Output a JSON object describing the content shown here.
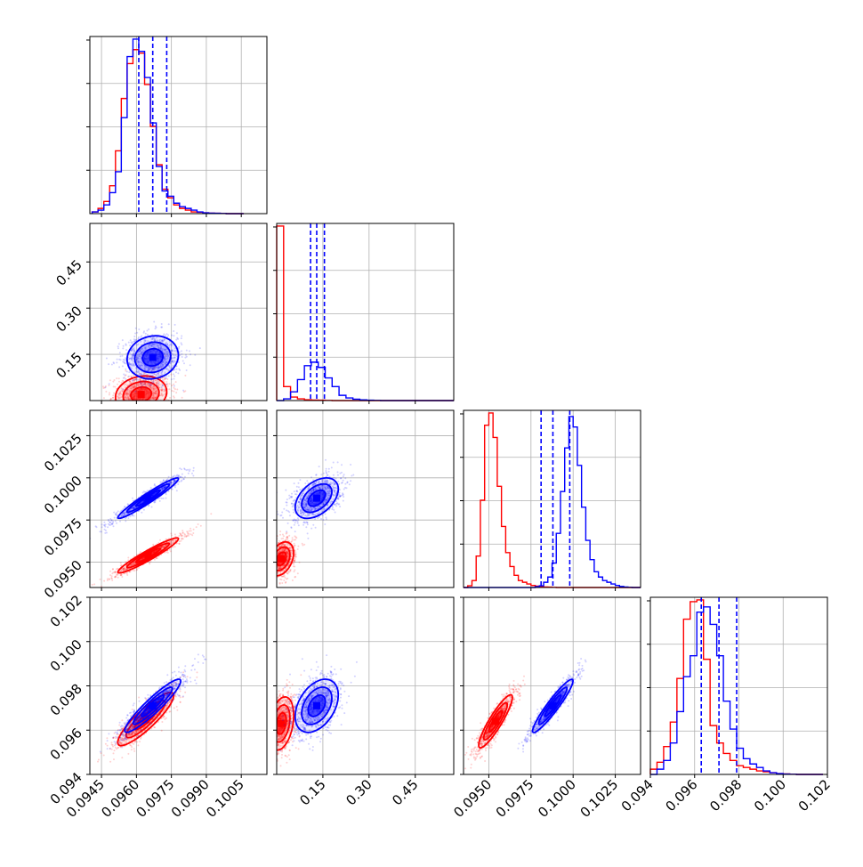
{
  "chart_data": {
    "type": "corner",
    "grid": true,
    "series_colors": {
      "blue": "#0000ff",
      "red": "#ff0000"
    },
    "parameters": [
      {
        "axis_range": [
          0.094,
          0.1016
        ],
        "ticks": [
          "0.0945",
          "0.0960",
          "0.0975",
          "0.0990",
          "0.1005"
        ],
        "tick_values": [
          0.0945,
          0.096,
          0.0975,
          0.099,
          0.1005
        ]
      },
      {
        "axis_range": [
          0.0,
          0.575
        ],
        "ticks": [
          "0.15",
          "0.30",
          "0.45"
        ],
        "tick_values": [
          0.15,
          0.3,
          0.45
        ]
      },
      {
        "axis_range": [
          0.0935,
          0.104
        ],
        "ticks": [
          "0.0950",
          "0.0975",
          "0.1000",
          "0.1025"
        ],
        "tick_values": [
          0.095,
          0.0975,
          0.1,
          0.1025
        ]
      },
      {
        "axis_range": [
          0.094,
          0.102
        ],
        "ticks": [
          "0.094",
          "0.096",
          "0.098",
          "0.100",
          "0.102"
        ],
        "tick_values": [
          0.094,
          0.096,
          0.098,
          0.1,
          0.102
        ]
      }
    ],
    "quantile_lines_blue": [
      [
        0.0961,
        0.0967,
        0.0973
      ],
      [
        0.11,
        0.13,
        0.155
      ],
      [
        0.0981,
        0.0988,
        0.0998
      ],
      [
        0.0963,
        0.0971,
        0.0979
      ]
    ],
    "histograms": [
      {
        "bins": [
          0.0941,
          0.09435,
          0.0946,
          0.09485,
          0.0951,
          0.09535,
          0.0956,
          0.09585,
          0.0961,
          0.09635,
          0.0966,
          0.09685,
          0.0971,
          0.09735,
          0.0976,
          0.09785,
          0.0981,
          0.09835,
          0.0986,
          0.09885,
          0.0991,
          0.09935,
          0.0996,
          0.09985,
          0.1001,
          0.10035,
          0.1006
        ],
        "blue": [
          0.01,
          0.02,
          0.05,
          0.12,
          0.24,
          0.55,
          0.9,
          1.0,
          0.93,
          0.78,
          0.52,
          0.27,
          0.13,
          0.1,
          0.06,
          0.04,
          0.03,
          0.02,
          0.01,
          0.005,
          0.003,
          0.002,
          0.001,
          0,
          0,
          0
        ],
        "red": [
          0.01,
          0.03,
          0.07,
          0.16,
          0.36,
          0.66,
          0.86,
          0.94,
          0.92,
          0.74,
          0.5,
          0.28,
          0.14,
          0.09,
          0.05,
          0.03,
          0.02,
          0.01,
          0.008,
          0.005,
          0.003,
          0.002,
          0.001,
          0,
          0,
          0
        ]
      },
      {
        "bins": [
          0.0,
          0.0225,
          0.045,
          0.0675,
          0.09,
          0.1125,
          0.135,
          0.1575,
          0.18,
          0.2025,
          0.225,
          0.2475,
          0.27,
          0.2925,
          0.315,
          0.3375,
          0.36,
          0.3825,
          0.405,
          0.4275,
          0.45,
          0.4725,
          0.495,
          0.5175,
          0.54,
          0.5625,
          0.575
        ],
        "blue": [
          0,
          0.01,
          0.05,
          0.12,
          0.2,
          0.22,
          0.19,
          0.13,
          0.08,
          0.03,
          0.015,
          0.008,
          0.004,
          0.002,
          0.001,
          0,
          0,
          0,
          0,
          0,
          0,
          0,
          0,
          0,
          0,
          0
        ],
        "red": [
          1.0,
          0.08,
          0.02,
          0.01,
          0.005,
          0.003,
          0.002,
          0.001,
          0,
          0,
          0,
          0,
          0,
          0,
          0,
          0,
          0,
          0,
          0,
          0,
          0,
          0,
          0,
          0,
          0,
          0
        ]
      },
      {
        "bins": [
          0.0935,
          0.09375,
          0.094,
          0.09425,
          0.0945,
          0.09475,
          0.095,
          0.09525,
          0.0955,
          0.09575,
          0.096,
          0.09625,
          0.0965,
          0.09675,
          0.097,
          0.09725,
          0.0975,
          0.09775,
          0.098,
          0.09825,
          0.0985,
          0.09875,
          0.099,
          0.09925,
          0.0995,
          0.09975,
          0.1,
          0.10025,
          0.1005,
          0.10075,
          0.101,
          0.10125,
          0.1015,
          0.10175,
          0.102,
          0.10225,
          0.1025,
          0.10275,
          0.103,
          0.10325,
          0.1035,
          0.10375,
          0.104
        ],
        "blue": [
          0,
          0,
          0,
          0,
          0,
          0,
          0,
          0,
          0,
          0,
          0,
          0,
          0,
          0,
          0,
          0,
          0,
          0.005,
          0.01,
          0.03,
          0.06,
          0.14,
          0.31,
          0.55,
          0.8,
          0.98,
          0.92,
          0.7,
          0.46,
          0.27,
          0.16,
          0.09,
          0.06,
          0.04,
          0.03,
          0.02,
          0.012,
          0.006,
          0.003,
          0.001,
          0,
          0
        ],
        "red": [
          0,
          0.01,
          0.04,
          0.18,
          0.5,
          0.93,
          1.0,
          0.86,
          0.58,
          0.35,
          0.2,
          0.12,
          0.07,
          0.04,
          0.03,
          0.02,
          0.012,
          0.008,
          0.005,
          0.003,
          0.002,
          0.001,
          0,
          0,
          0,
          0,
          0,
          0,
          0,
          0,
          0,
          0,
          0,
          0,
          0,
          0,
          0,
          0,
          0,
          0,
          0,
          0
        ]
      },
      {
        "bins": [
          0.094,
          0.0943,
          0.0946,
          0.0949,
          0.0952,
          0.0955,
          0.0958,
          0.0961,
          0.0964,
          0.0967,
          0.097,
          0.0973,
          0.0976,
          0.0979,
          0.0982,
          0.0985,
          0.0988,
          0.0991,
          0.0994,
          0.0997,
          0.1,
          0.1003,
          0.1006,
          0.1009,
          0.1012,
          0.1015,
          0.1018
        ],
        "blue": [
          0.0,
          0.03,
          0.08,
          0.18,
          0.36,
          0.56,
          0.68,
          0.93,
          0.96,
          0.86,
          0.68,
          0.42,
          0.26,
          0.15,
          0.09,
          0.06,
          0.04,
          0.02,
          0.01,
          0.005,
          0.002,
          0.001,
          0,
          0,
          0,
          0
        ],
        "red": [
          0.03,
          0.07,
          0.16,
          0.3,
          0.55,
          0.89,
          0.99,
          1.0,
          0.66,
          0.28,
          0.18,
          0.12,
          0.08,
          0.05,
          0.04,
          0.03,
          0.02,
          0.015,
          0.01,
          0.005,
          0.003,
          0.001,
          0,
          0,
          0,
          0
        ]
      }
    ],
    "scatter_clouds": [
      {
        "row": 1,
        "col": 0,
        "blue": {
          "mean": [
            0.0967,
            0.14
          ],
          "sd": [
            0.00055,
            0.035
          ],
          "corr": 0.1
        },
        "red": {
          "mean": [
            0.0962,
            0.02
          ],
          "sd": [
            0.00055,
            0.03
          ],
          "corr": 0.15
        }
      },
      {
        "row": 2,
        "col": 0,
        "blue": {
          "mean": [
            0.0965,
            0.0988
          ],
          "sd": [
            0.00065,
            0.0006
          ],
          "corr": 0.96
        },
        "red": {
          "mean": [
            0.0965,
            0.0954
          ],
          "sd": [
            0.00065,
            0.00052
          ],
          "corr": 0.95
        }
      },
      {
        "row": 2,
        "col": 1,
        "blue": {
          "mean": [
            0.13,
            0.0988
          ],
          "sd": [
            0.035,
            0.0006
          ],
          "corr": 0.45
        },
        "red": {
          "mean": [
            0.015,
            0.0952
          ],
          "sd": [
            0.02,
            0.0005
          ],
          "corr": 0.35
        }
      },
      {
        "row": 3,
        "col": 0,
        "blue": {
          "mean": [
            0.0967,
            0.0971
          ],
          "sd": [
            0.0006,
            0.0006
          ],
          "corr": 0.93
        },
        "red": {
          "mean": [
            0.0964,
            0.0965
          ],
          "sd": [
            0.0006,
            0.0006
          ],
          "corr": 0.88
        }
      },
      {
        "row": 3,
        "col": 1,
        "blue": {
          "mean": [
            0.13,
            0.0971
          ],
          "sd": [
            0.035,
            0.0006
          ],
          "corr": 0.4
        },
        "red": {
          "mean": [
            0.015,
            0.0963
          ],
          "sd": [
            0.02,
            0.0006
          ],
          "corr": 0.3
        }
      },
      {
        "row": 3,
        "col": 2,
        "blue": {
          "mean": [
            0.0988,
            0.0971
          ],
          "sd": [
            0.0006,
            0.0006
          ],
          "corr": 0.94
        },
        "red": {
          "mean": [
            0.0954,
            0.0964
          ],
          "sd": [
            0.0005,
            0.0006
          ],
          "corr": 0.9
        }
      }
    ]
  }
}
